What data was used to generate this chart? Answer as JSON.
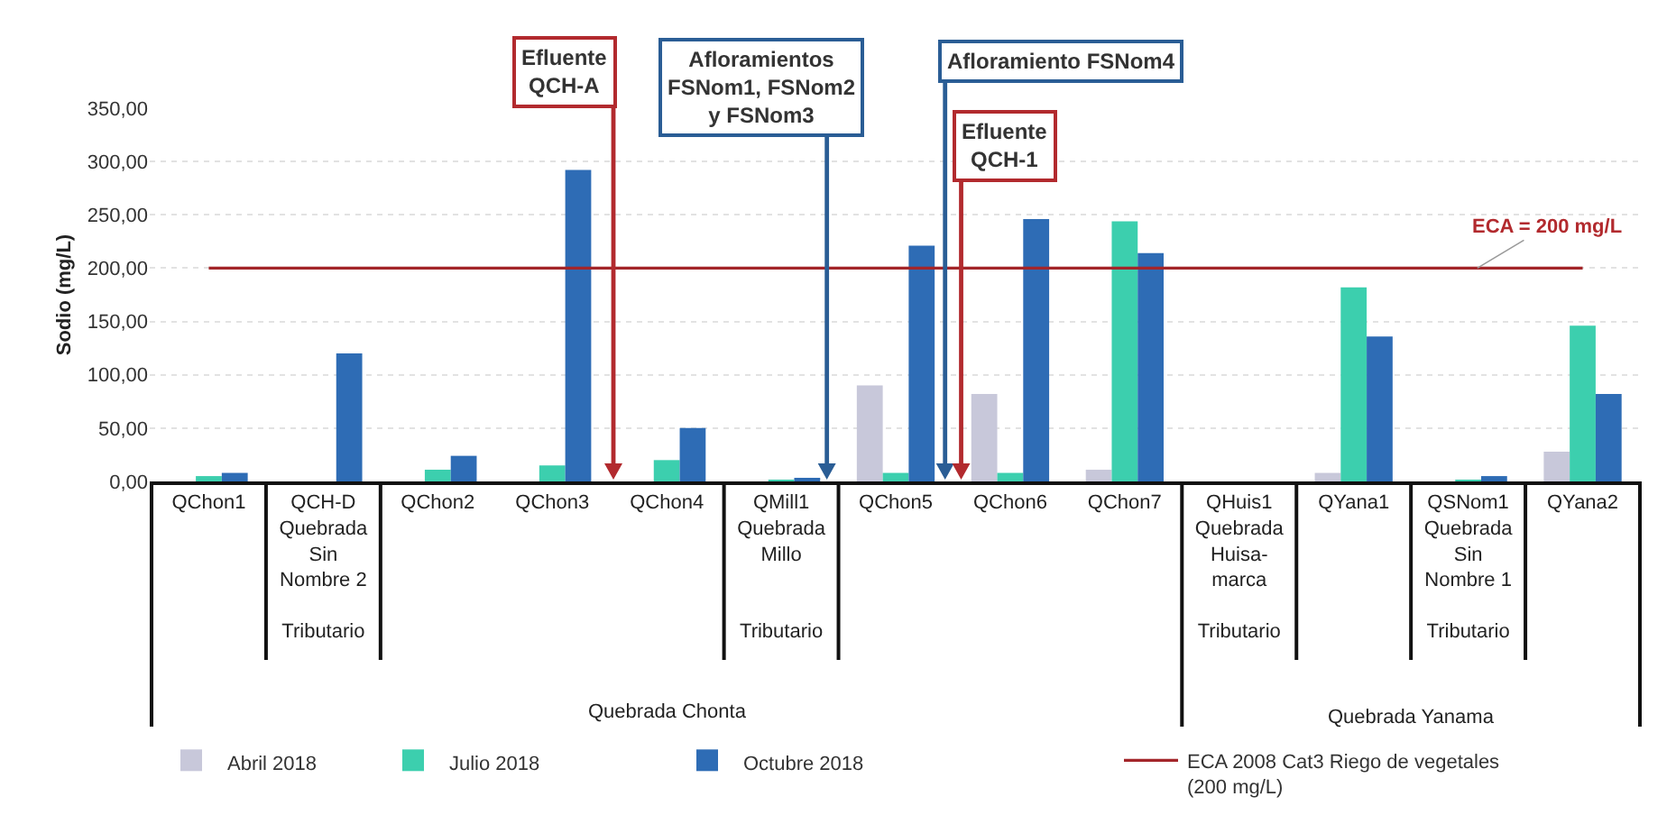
{
  "chart_data": {
    "type": "bar",
    "ylabel": "Sodio (mg/L)",
    "categories": [
      "QChon1",
      "QCH-D\nQuebrada\nSin\nNombre 2\n\nTributario",
      "QChon2",
      "QChon3",
      "QChon4",
      "QMill1\nQuebrada\nMillo\n\n\nTributario",
      "QChon5",
      "QChon6",
      "QChon7",
      "QHuis1\nQuebrada\nHuisa-\nmarca\n\nTributario",
      "QYana1",
      "QSNom1\nQuebrada\nSin\nNombre 1\n\nTributario",
      "QYana2"
    ],
    "series": [
      {
        "name": "Abril 2018",
        "color": "#c8c8da",
        "values": [
          null,
          null,
          null,
          null,
          null,
          null,
          90,
          82,
          11,
          null,
          8,
          null,
          28
        ]
      },
      {
        "name": "Julio 2018",
        "color": "#3ccfae",
        "values": [
          5,
          null,
          11,
          15,
          20,
          1,
          8,
          8,
          244,
          null,
          182,
          1,
          146
        ]
      },
      {
        "name": "Octubre 2018",
        "color": "#2e6cb5",
        "values": [
          8,
          120,
          24,
          292,
          50,
          2,
          221,
          246,
          214,
          null,
          136,
          5,
          82
        ]
      },
      {
        "name": "ECA 2008 Cat3 Riego de vegetales\n(200 mg/L)",
        "type": "line",
        "color": "#a3262a",
        "values": [
          200,
          200,
          200,
          200,
          200,
          200,
          200,
          200,
          200,
          200,
          200,
          200,
          200
        ]
      }
    ],
    "ylim": [
      0,
      350
    ],
    "yticks": [
      {
        "value": 0,
        "label": "0,00"
      },
      {
        "value": 50,
        "label": "50,00"
      },
      {
        "value": 100,
        "label": "100,00"
      },
      {
        "value": 150,
        "label": "150,00"
      },
      {
        "value": 200,
        "label": "200,00"
      },
      {
        "value": 250,
        "label": "250,00"
      },
      {
        "value": 300,
        "label": "300,00"
      },
      {
        "value": 350,
        "label": "350,00"
      }
    ],
    "grid": "y",
    "legend": "bottom",
    "annotations": [
      "Efluente\nQCH-A",
      "Afloramientos\nFSNom1, FSNom2\ny FSNom3",
      "Afloramiento FSNom4",
      "Efluente\nQCH-1",
      {
        "text": "ECA = 200 mg/L",
        "y": 200
      },
      "Quebrada Chonta",
      "Quebrada Yanama"
    ]
  }
}
